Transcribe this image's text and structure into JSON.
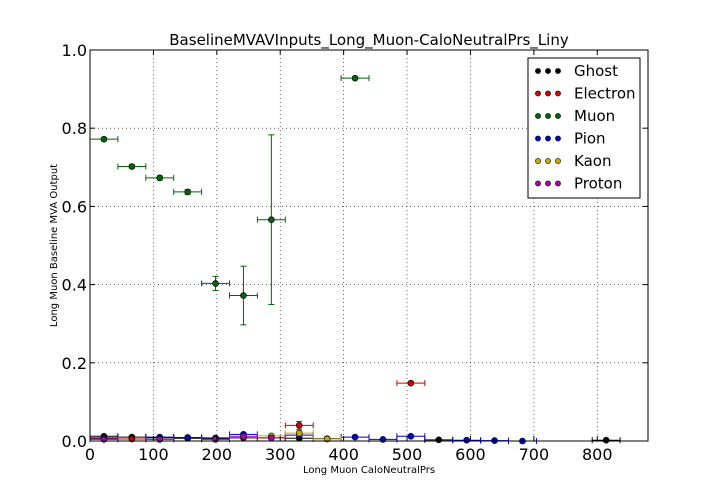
{
  "chart_data": {
    "type": "scatter",
    "title": "BaselineMVAVInputs_Long_Muon-CaloNeutralPrs_Liny",
    "xlabel": "Long Muon CaloNeutralPrs",
    "ylabel": "Long Muon Baseline MVA Output",
    "xlim": [
      0,
      880
    ],
    "ylim": [
      0,
      1.0
    ],
    "x_ticks": [
      0,
      100,
      200,
      300,
      400,
      500,
      600,
      700,
      800
    ],
    "y_ticks": [
      0.0,
      0.2,
      0.4,
      0.6,
      0.8,
      1.0
    ],
    "x_tick_labels": [
      "0",
      "100",
      "200",
      "300",
      "400",
      "500",
      "600",
      "700",
      "800"
    ],
    "y_tick_labels": [
      "0.0",
      "0.2",
      "0.4",
      "0.6",
      "0.8",
      "1.0"
    ],
    "grid": true,
    "legend_position": "top-right",
    "series": [
      {
        "name": "Ghost",
        "color": "#000000",
        "points": [
          {
            "x": 22,
            "y": 0.012,
            "xerr": 22,
            "yerr": 0.002
          },
          {
            "x": 66,
            "y": 0.01,
            "xerr": 22,
            "yerr": 0.002
          },
          {
            "x": 110,
            "y": 0.008,
            "xerr": 22,
            "yerr": 0.002
          },
          {
            "x": 154,
            "y": 0.007,
            "xerr": 22,
            "yerr": 0.002
          },
          {
            "x": 198,
            "y": 0.006,
            "xerr": 22,
            "yerr": 0.002
          },
          {
            "x": 242,
            "y": 0.008,
            "xerr": 22,
            "yerr": 0.002
          },
          {
            "x": 286,
            "y": 0.008,
            "xerr": 22,
            "yerr": 0.002
          },
          {
            "x": 330,
            "y": 0.007,
            "xerr": 22,
            "yerr": 0.002
          },
          {
            "x": 374,
            "y": 0.006,
            "xerr": 22,
            "yerr": 0.002
          },
          {
            "x": 550,
            "y": 0.003,
            "xerr": 22,
            "yerr": 0.002
          },
          {
            "x": 814,
            "y": 0.002,
            "xerr": 22,
            "yerr": 0.002
          }
        ]
      },
      {
        "name": "Electron",
        "color": "#cc0000",
        "points": [
          {
            "x": 22,
            "y": 0.006,
            "xerr": 22,
            "yerr": 0.001
          },
          {
            "x": 66,
            "y": 0.005,
            "xerr": 22,
            "yerr": 0.001
          },
          {
            "x": 330,
            "y": 0.04,
            "xerr": 22,
            "yerr": 0.01
          },
          {
            "x": 506,
            "y": 0.148,
            "xerr": 22,
            "yerr": 0.003
          }
        ]
      },
      {
        "name": "Muon",
        "color": "#006600",
        "points": [
          {
            "x": 22,
            "y": 0.772,
            "xerr": 22,
            "yerr": 0.004
          },
          {
            "x": 66,
            "y": 0.702,
            "xerr": 22,
            "yerr": 0.004
          },
          {
            "x": 110,
            "y": 0.673,
            "xerr": 22,
            "yerr": 0.005
          },
          {
            "x": 154,
            "y": 0.637,
            "xerr": 22,
            "yerr": 0.006
          },
          {
            "x": 198,
            "y": 0.403,
            "xerr": 22,
            "yerr": 0.018
          },
          {
            "x": 242,
            "y": 0.372,
            "xerr": 22,
            "yerr": 0.075
          },
          {
            "x": 286,
            "y": 0.566,
            "xerr": 22,
            "yerr": 0.217
          },
          {
            "x": 418,
            "y": 0.928,
            "xerr": 22,
            "yerr": 0.003
          }
        ]
      },
      {
        "name": "Pion",
        "color": "#0000cc",
        "points": [
          {
            "x": 22,
            "y": 0.008,
            "xerr": 22,
            "yerr": 0.002
          },
          {
            "x": 110,
            "y": 0.01,
            "xerr": 22,
            "yerr": 0.002
          },
          {
            "x": 154,
            "y": 0.009,
            "xerr": 22,
            "yerr": 0.002
          },
          {
            "x": 198,
            "y": 0.008,
            "xerr": 22,
            "yerr": 0.002
          },
          {
            "x": 242,
            "y": 0.017,
            "xerr": 22,
            "yerr": 0.003
          },
          {
            "x": 330,
            "y": 0.015,
            "xerr": 22,
            "yerr": 0.003
          },
          {
            "x": 418,
            "y": 0.01,
            "xerr": 22,
            "yerr": 0.002
          },
          {
            "x": 462,
            "y": 0.004,
            "xerr": 22,
            "yerr": 0.002
          },
          {
            "x": 506,
            "y": 0.012,
            "xerr": 22,
            "yerr": 0.002
          },
          {
            "x": 594,
            "y": 0.002,
            "xerr": 22,
            "yerr": 0.002
          },
          {
            "x": 638,
            "y": 0.001,
            "xerr": 22,
            "yerr": 0.001
          },
          {
            "x": 682,
            "y": 0.0,
            "xerr": 22,
            "yerr": 0.001
          }
        ]
      },
      {
        "name": "Kaon",
        "color": "#ccaa00",
        "points": [
          {
            "x": 286,
            "y": 0.013,
            "xerr": 22,
            "yerr": 0.003
          },
          {
            "x": 330,
            "y": 0.02,
            "xerr": 22,
            "yerr": 0.006
          },
          {
            "x": 374,
            "y": 0.005,
            "xerr": 22,
            "yerr": 0.002
          }
        ]
      },
      {
        "name": "Proton",
        "color": "#aa00aa",
        "points": [
          {
            "x": 22,
            "y": 0.004,
            "xerr": 22,
            "yerr": 0.001
          },
          {
            "x": 110,
            "y": 0.004,
            "xerr": 22,
            "yerr": 0.001
          },
          {
            "x": 198,
            "y": 0.004,
            "xerr": 22,
            "yerr": 0.001
          },
          {
            "x": 242,
            "y": 0.012,
            "xerr": 22,
            "yerr": 0.002
          },
          {
            "x": 286,
            "y": 0.008,
            "xerr": 22,
            "yerr": 0.002
          }
        ]
      }
    ]
  }
}
